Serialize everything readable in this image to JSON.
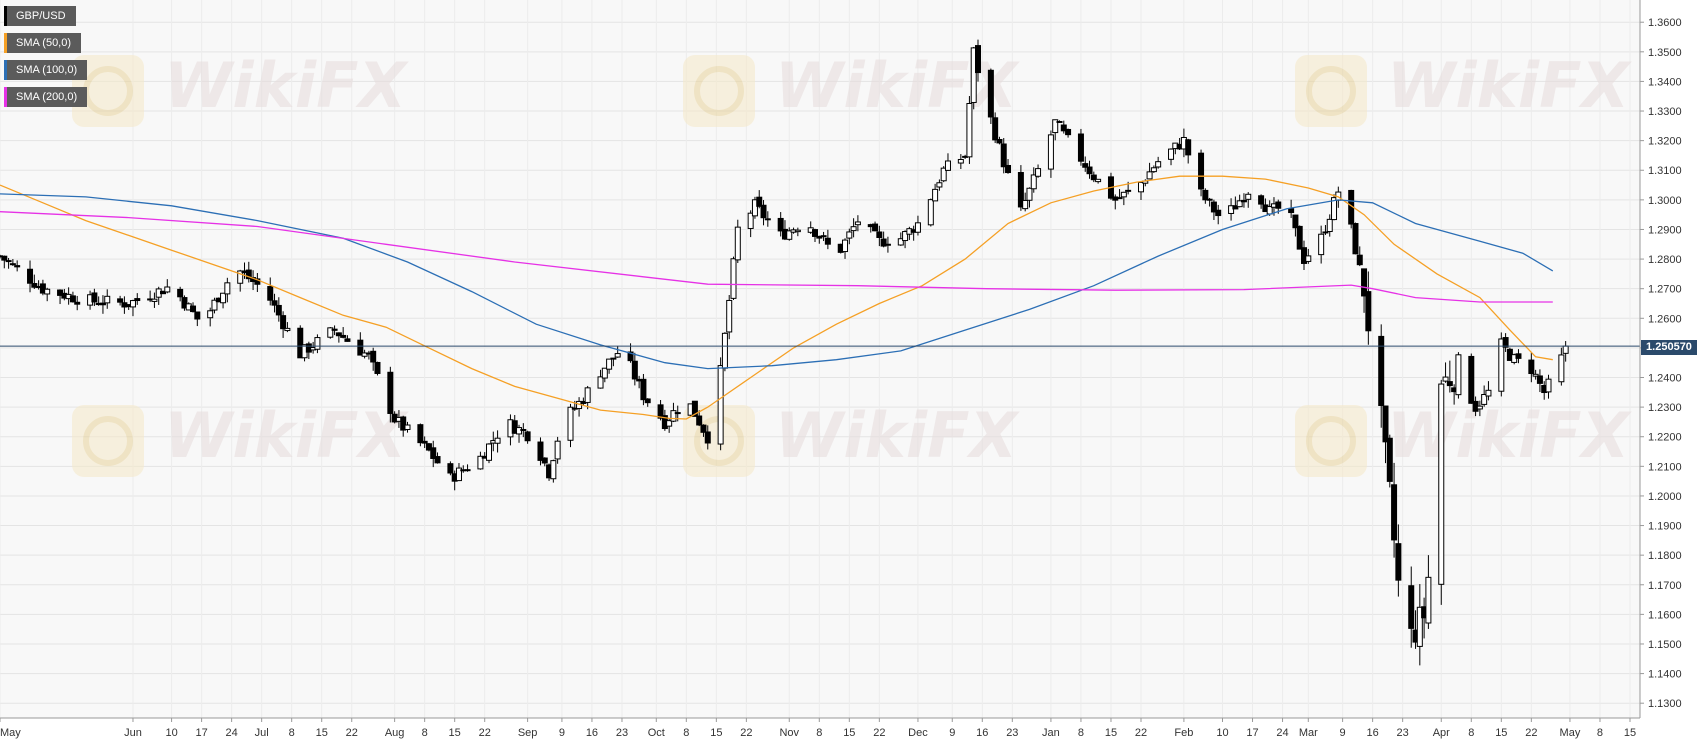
{
  "chart_data": {
    "type": "candlestick",
    "symbol": "GBP/USD",
    "legend": [
      {
        "label": "GBP/USD",
        "color": "#000000"
      },
      {
        "label": "SMA (50,0)",
        "color": "#f5a025"
      },
      {
        "label": "SMA (100,0)",
        "color": "#2c6fb5"
      },
      {
        "label": "SMA (200,0)",
        "color": "#e632e6"
      }
    ],
    "legend_placement": "top-left",
    "grid": true,
    "last_price_label": "1.250570",
    "last_price": 1.2506,
    "ylim": [
      1.125,
      1.3675
    ],
    "y_ticks": [
      "1.3600",
      "1.3500",
      "1.3400",
      "1.3300",
      "1.3200",
      "1.3100",
      "1.3000",
      "1.2900",
      "1.2800",
      "1.2700",
      "1.2600",
      "1.2500",
      "1.2400",
      "1.2300",
      "1.2200",
      "1.2100",
      "1.2000",
      "1.1900",
      "1.1800",
      "1.1700",
      "1.1600",
      "1.1500",
      "1.1400",
      "1.1300"
    ],
    "x_ticks": [
      {
        "label": "May",
        "day": 0
      },
      {
        "label": "Jun",
        "day": 31
      },
      {
        "label": "10",
        "day": 40
      },
      {
        "label": "17",
        "day": 47
      },
      {
        "label": "24",
        "day": 54
      },
      {
        "label": "Jul",
        "day": 61
      },
      {
        "label": "8",
        "day": 68
      },
      {
        "label": "15",
        "day": 75
      },
      {
        "label": "22",
        "day": 82
      },
      {
        "label": "Aug",
        "day": 92
      },
      {
        "label": "8",
        "day": 99
      },
      {
        "label": "15",
        "day": 106
      },
      {
        "label": "22",
        "day": 113
      },
      {
        "label": "Sep",
        "day": 123
      },
      {
        "label": "9",
        "day": 131
      },
      {
        "label": "16",
        "day": 138
      },
      {
        "label": "23",
        "day": 145
      },
      {
        "label": "Oct",
        "day": 153
      },
      {
        "label": "8",
        "day": 160
      },
      {
        "label": "15",
        "day": 167
      },
      {
        "label": "22",
        "day": 174
      },
      {
        "label": "Nov",
        "day": 184
      },
      {
        "label": "8",
        "day": 191
      },
      {
        "label": "15",
        "day": 198
      },
      {
        "label": "22",
        "day": 205
      },
      {
        "label": "Dec",
        "day": 214
      },
      {
        "label": "9",
        "day": 222
      },
      {
        "label": "16",
        "day": 229
      },
      {
        "label": "23",
        "day": 236
      },
      {
        "label": "Jan",
        "day": 245
      },
      {
        "label": "8",
        "day": 252
      },
      {
        "label": "15",
        "day": 259
      },
      {
        "label": "22",
        "day": 266
      },
      {
        "label": "Feb",
        "day": 276
      },
      {
        "label": "10",
        "day": 285
      },
      {
        "label": "17",
        "day": 292
      },
      {
        "label": "24",
        "day": 299
      },
      {
        "label": "Mar",
        "day": 305
      },
      {
        "label": "9",
        "day": 313
      },
      {
        "label": "16",
        "day": 320
      },
      {
        "label": "23",
        "day": 327
      },
      {
        "label": "Apr",
        "day": 336
      },
      {
        "label": "8",
        "day": 343
      },
      {
        "label": "15",
        "day": 350
      },
      {
        "label": "22",
        "day": 357
      },
      {
        "label": "May",
        "day": 366
      },
      {
        "label": "8",
        "day": 373
      },
      {
        "label": "15",
        "day": 380
      }
    ],
    "last_day": 365,
    "close_path": [
      [
        0,
        1.281
      ],
      [
        10,
        1.27
      ],
      [
        20,
        1.266
      ],
      [
        30,
        1.265
      ],
      [
        40,
        1.271
      ],
      [
        47,
        1.258
      ],
      [
        55,
        1.277
      ],
      [
        62,
        1.269
      ],
      [
        70,
        1.248
      ],
      [
        78,
        1.256
      ],
      [
        86,
        1.247
      ],
      [
        92,
        1.226
      ],
      [
        100,
        1.215
      ],
      [
        105,
        1.206
      ],
      [
        112,
        1.213
      ],
      [
        118,
        1.225
      ],
      [
        124,
        1.22
      ],
      [
        128,
        1.208
      ],
      [
        131,
        1.225
      ],
      [
        136,
        1.233
      ],
      [
        140,
        1.242
      ],
      [
        145,
        1.25
      ],
      [
        150,
        1.234
      ],
      [
        155,
        1.225
      ],
      [
        160,
        1.233
      ],
      [
        165,
        1.22
      ],
      [
        168,
        1.242
      ],
      [
        172,
        1.29
      ],
      [
        176,
        1.298
      ],
      [
        182,
        1.288
      ],
      [
        188,
        1.293
      ],
      [
        195,
        1.281
      ],
      [
        200,
        1.293
      ],
      [
        205,
        1.286
      ],
      [
        210,
        1.287
      ],
      [
        214,
        1.292
      ],
      [
        220,
        1.31
      ],
      [
        225,
        1.315
      ],
      [
        227,
        1.35
      ],
      [
        230,
        1.332
      ],
      [
        235,
        1.308
      ],
      [
        238,
        1.296
      ],
      [
        242,
        1.31
      ],
      [
        246,
        1.326
      ],
      [
        250,
        1.318
      ],
      [
        255,
        1.308
      ],
      [
        260,
        1.3
      ],
      [
        265,
        1.304
      ],
      [
        270,
        1.313
      ],
      [
        276,
        1.32
      ],
      [
        280,
        1.302
      ],
      [
        285,
        1.293
      ],
      [
        292,
        1.305
      ],
      [
        296,
        1.296
      ],
      [
        300,
        1.298
      ],
      [
        304,
        1.28
      ],
      [
        308,
        1.287
      ],
      [
        312,
        1.303
      ],
      [
        315,
        1.29
      ],
      [
        318,
        1.27
      ],
      [
        320,
        1.247
      ],
      [
        322,
        1.225
      ],
      [
        324,
        1.2
      ],
      [
        326,
        1.17
      ],
      [
        328,
        1.15
      ],
      [
        332,
        1.16
      ],
      [
        334,
        1.185
      ],
      [
        336,
        1.238
      ],
      [
        340,
        1.242
      ],
      [
        344,
        1.23
      ],
      [
        347,
        1.235
      ],
      [
        350,
        1.251
      ],
      [
        353,
        1.246
      ],
      [
        357,
        1.243
      ],
      [
        360,
        1.235
      ],
      [
        363,
        1.242
      ],
      [
        365,
        1.2506
      ]
    ],
    "series": [
      {
        "name": "SMA (50,0)",
        "color": "#f5a025",
        "points": [
          [
            0,
            1.305
          ],
          [
            10,
            1.299
          ],
          [
            20,
            1.293
          ],
          [
            30,
            1.288
          ],
          [
            40,
            1.283
          ],
          [
            50,
            1.278
          ],
          [
            60,
            1.273
          ],
          [
            70,
            1.267
          ],
          [
            80,
            1.261
          ],
          [
            90,
            1.257
          ],
          [
            100,
            1.25
          ],
          [
            110,
            1.243
          ],
          [
            120,
            1.237
          ],
          [
            130,
            1.233
          ],
          [
            140,
            1.229
          ],
          [
            150,
            1.2275
          ],
          [
            156,
            1.2262
          ],
          [
            160,
            1.226
          ],
          [
            165,
            1.23
          ],
          [
            175,
            1.24
          ],
          [
            185,
            1.25
          ],
          [
            195,
            1.258
          ],
          [
            205,
            1.265
          ],
          [
            215,
            1.271
          ],
          [
            225,
            1.28
          ],
          [
            235,
            1.292
          ],
          [
            245,
            1.299
          ],
          [
            255,
            1.303
          ],
          [
            265,
            1.306
          ],
          [
            275,
            1.308
          ],
          [
            285,
            1.308
          ],
          [
            295,
            1.307
          ],
          [
            305,
            1.304
          ],
          [
            312,
            1.301
          ],
          [
            318,
            1.295
          ],
          [
            325,
            1.285
          ],
          [
            335,
            1.275
          ],
          [
            345,
            1.267
          ],
          [
            352,
            1.256
          ],
          [
            358,
            1.247
          ],
          [
            362,
            1.246
          ]
        ]
      },
      {
        "name": "SMA (100,0)",
        "color": "#2c6fb5",
        "points": [
          [
            0,
            1.302
          ],
          [
            20,
            1.301
          ],
          [
            40,
            1.298
          ],
          [
            60,
            1.293
          ],
          [
            80,
            1.287
          ],
          [
            95,
            1.279
          ],
          [
            110,
            1.269
          ],
          [
            125,
            1.258
          ],
          [
            140,
            1.251
          ],
          [
            155,
            1.245
          ],
          [
            165,
            1.243
          ],
          [
            180,
            1.244
          ],
          [
            195,
            1.246
          ],
          [
            210,
            1.249
          ],
          [
            225,
            1.256
          ],
          [
            240,
            1.263
          ],
          [
            255,
            1.271
          ],
          [
            270,
            1.281
          ],
          [
            285,
            1.29
          ],
          [
            300,
            1.297
          ],
          [
            312,
            1.3
          ],
          [
            320,
            1.299
          ],
          [
            330,
            1.292
          ],
          [
            345,
            1.286
          ],
          [
            355,
            1.282
          ],
          [
            362,
            1.276
          ]
        ]
      },
      {
        "name": "SMA (200,0)",
        "color": "#e632e6",
        "points": [
          [
            0,
            1.296
          ],
          [
            30,
            1.294
          ],
          [
            60,
            1.291
          ],
          [
            90,
            1.285
          ],
          [
            120,
            1.279
          ],
          [
            150,
            1.274
          ],
          [
            165,
            1.2715
          ],
          [
            200,
            1.271
          ],
          [
            230,
            1.27
          ],
          [
            260,
            1.2695
          ],
          [
            290,
            1.2697
          ],
          [
            315,
            1.2712
          ],
          [
            320,
            1.27
          ],
          [
            330,
            1.267
          ],
          [
            345,
            1.2655
          ],
          [
            362,
            1.2655
          ]
        ]
      }
    ]
  },
  "watermark": {
    "text": "WikiFX"
  }
}
